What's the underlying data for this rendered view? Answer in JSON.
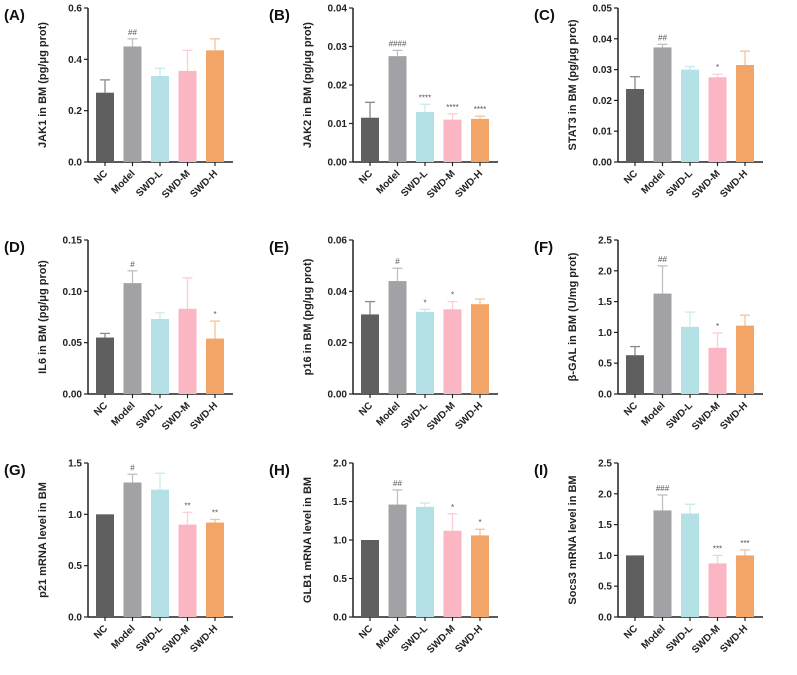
{
  "categories": [
    "NC",
    "Model",
    "SWD-L",
    "SWD-M",
    "SWD-H"
  ],
  "colors": [
    "#5f5f5f",
    "#a2a2a6",
    "#b3e1e6",
    "#fbb6c3",
    "#f2a566"
  ],
  "err_colors": [
    "#8a8a8a",
    "#c0c0c4",
    "#c9eaee",
    "#fccdd6",
    "#f6c497"
  ],
  "chart_data": [
    {
      "type": "bar",
      "panel": "(A)",
      "ylabel": "JAK1 in BM (pg/μg prot)",
      "ylim": [
        0,
        0.6
      ],
      "ticks": [
        "0.0",
        "0.2",
        "0.4",
        "0.6"
      ],
      "values": [
        0.27,
        0.45,
        0.335,
        0.355,
        0.435
      ],
      "errors": [
        0.05,
        0.03,
        0.03,
        0.08,
        0.045
      ],
      "marks": [
        "",
        "##",
        "",
        "",
        ""
      ]
    },
    {
      "type": "bar",
      "panel": "(B)",
      "ylabel": "JAK2 in BM (pg/μg prot)",
      "ylim": [
        0,
        0.04
      ],
      "ticks": [
        "0.00",
        "0.01",
        "0.02",
        "0.03",
        "0.04"
      ],
      "values": [
        0.0115,
        0.0275,
        0.013,
        0.011,
        0.0112
      ],
      "errors": [
        0.004,
        0.0015,
        0.002,
        0.0015,
        0.0007
      ],
      "marks": [
        "",
        "####",
        "****",
        "****",
        "****"
      ]
    },
    {
      "type": "bar",
      "panel": "(C)",
      "ylabel": "STAT3 in BM (pg/μg prot)",
      "ylim": [
        0,
        0.05
      ],
      "ticks": [
        "0.00",
        "0.01",
        "0.02",
        "0.03",
        "0.04",
        "0.05"
      ],
      "values": [
        0.0237,
        0.0372,
        0.03,
        0.0275,
        0.0315
      ],
      "errors": [
        0.004,
        0.001,
        0.001,
        0.001,
        0.0045
      ],
      "marks": [
        "",
        "##",
        "",
        "*",
        ""
      ]
    },
    {
      "type": "bar",
      "panel": "(D)",
      "ylabel": "IL6 in BM (pg/μg prot)",
      "ylim": [
        0,
        0.15
      ],
      "ticks": [
        "0.00",
        "0.05",
        "0.10",
        "0.15"
      ],
      "values": [
        0.055,
        0.108,
        0.073,
        0.083,
        0.054
      ],
      "errors": [
        0.004,
        0.012,
        0.006,
        0.03,
        0.017
      ],
      "marks": [
        "",
        "#",
        "",
        "",
        "*"
      ]
    },
    {
      "type": "bar",
      "panel": "(E)",
      "ylabel": "p16 in BM (pg/μg prot)",
      "ylim": [
        0,
        0.06
      ],
      "ticks": [
        "0.00",
        "0.02",
        "0.04",
        "0.06"
      ],
      "values": [
        0.031,
        0.044,
        0.032,
        0.033,
        0.035
      ],
      "errors": [
        0.005,
        0.005,
        0.001,
        0.003,
        0.002
      ],
      "marks": [
        "",
        "#",
        "*",
        "*",
        ""
      ]
    },
    {
      "type": "bar",
      "panel": "(F)",
      "ylabel": "β-GAL in BM (U/mg prot)",
      "ylim": [
        0,
        2.5
      ],
      "ticks": [
        "0.0",
        "0.5",
        "1.0",
        "1.5",
        "2.0",
        "2.5"
      ],
      "values": [
        0.63,
        1.63,
        1.09,
        0.75,
        1.11
      ],
      "errors": [
        0.14,
        0.45,
        0.24,
        0.24,
        0.17
      ],
      "marks": [
        "",
        "##",
        "",
        "*",
        ""
      ]
    },
    {
      "type": "bar",
      "panel": "(G)",
      "ylabel": "p21 mRNA level in BM",
      "ylim": [
        0,
        1.5
      ],
      "ticks": [
        "0.0",
        "0.5",
        "1.0",
        "1.5"
      ],
      "values": [
        1.0,
        1.31,
        1.24,
        0.9,
        0.92
      ],
      "errors": [
        0,
        0.08,
        0.16,
        0.12,
        0.03
      ],
      "marks": [
        "",
        "#",
        "",
        "**",
        "**"
      ]
    },
    {
      "type": "bar",
      "panel": "(H)",
      "ylabel": "GLB1 mRNA level in BM",
      "ylim": [
        0,
        2.0
      ],
      "ticks": [
        "0.0",
        "0.5",
        "1.0",
        "1.5",
        "2.0"
      ],
      "values": [
        1.0,
        1.46,
        1.43,
        1.12,
        1.06
      ],
      "errors": [
        0,
        0.19,
        0.05,
        0.22,
        0.08
      ],
      "marks": [
        "",
        "##",
        "",
        "*",
        "*"
      ]
    },
    {
      "type": "bar",
      "panel": "(I)",
      "ylabel": "Socs3 mRNA level in BM",
      "ylim": [
        0,
        2.5
      ],
      "ticks": [
        "0.0",
        "0.5",
        "1.0",
        "1.5",
        "2.0",
        "2.5"
      ],
      "values": [
        1.0,
        1.73,
        1.68,
        0.87,
        1.0
      ],
      "errors": [
        0,
        0.25,
        0.15,
        0.13,
        0.09
      ],
      "marks": [
        "",
        "###",
        "",
        "***",
        "***"
      ]
    }
  ]
}
